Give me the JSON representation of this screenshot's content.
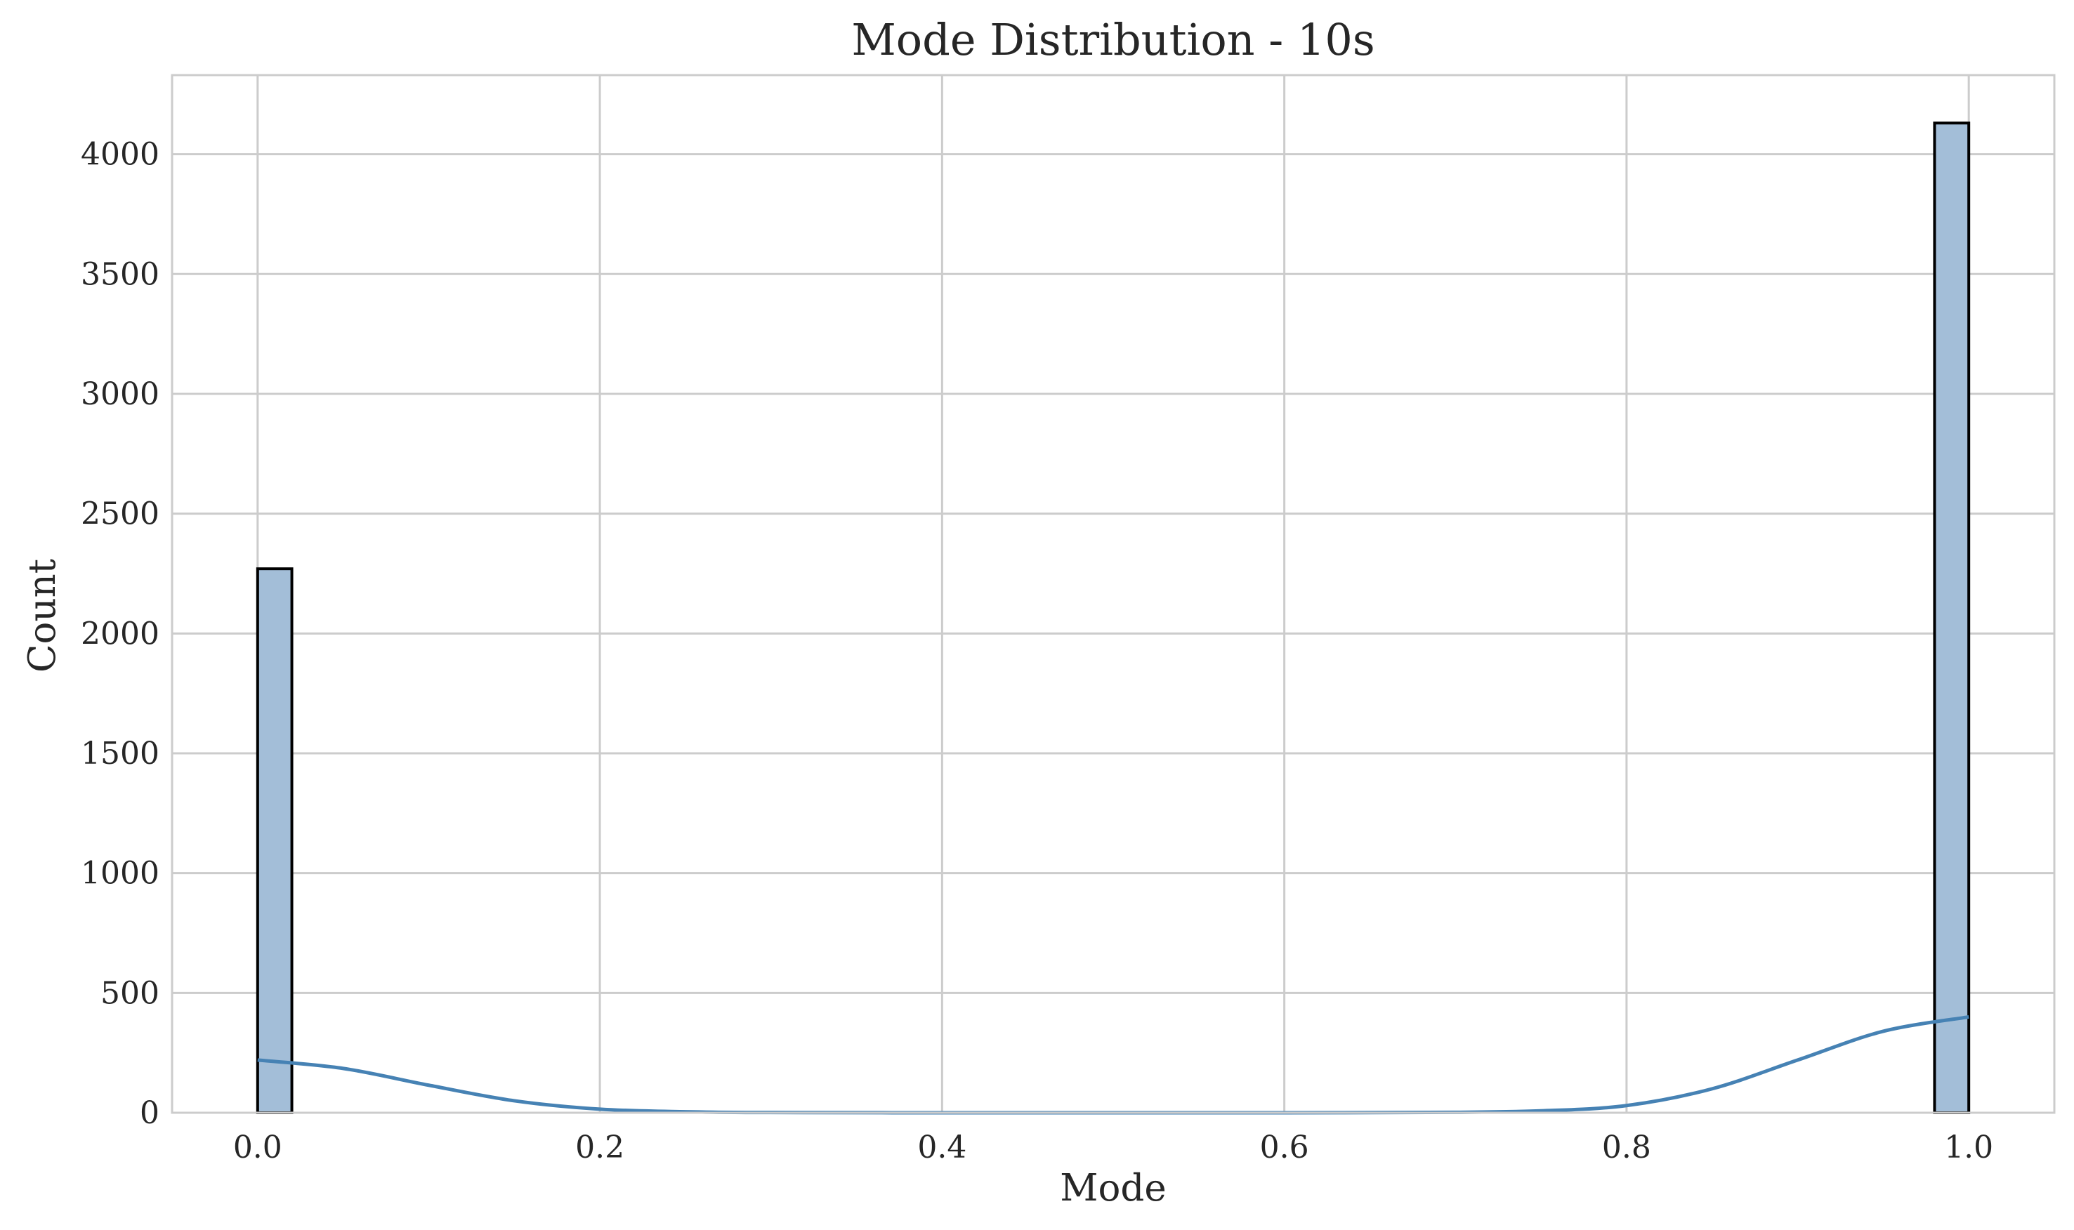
{
  "chart_data": {
    "type": "bar",
    "title": "Mode Distribution - 10s",
    "xlabel": "Mode",
    "ylabel": "Count",
    "xlim": [
      -0.05,
      1.05
    ],
    "ylim": [
      0,
      4330
    ],
    "xticks": [
      0.0,
      0.2,
      0.4,
      0.6,
      0.8,
      1.0
    ],
    "xtick_labels": [
      "0.0",
      "0.2",
      "0.4",
      "0.6",
      "0.8",
      "1.0"
    ],
    "yticks": [
      0,
      500,
      1000,
      1500,
      2000,
      2500,
      3000,
      3500,
      4000
    ],
    "ytick_labels": [
      "0",
      "500",
      "1000",
      "1500",
      "2000",
      "2500",
      "3000",
      "3500",
      "4000"
    ],
    "grid": true,
    "bars": [
      {
        "x0": 0.0,
        "x1": 0.02,
        "count": 2270
      },
      {
        "x0": 0.98,
        "x1": 1.0,
        "count": 4130
      }
    ],
    "kde_curve": {
      "x": [
        0.0,
        0.05,
        0.1,
        0.15,
        0.2,
        0.25,
        0.3,
        0.4,
        0.5,
        0.6,
        0.7,
        0.75,
        0.8,
        0.85,
        0.9,
        0.95,
        1.0
      ],
      "y": [
        220,
        185,
        115,
        50,
        15,
        4,
        1,
        0,
        0,
        0,
        2,
        8,
        30,
        100,
        220,
        340,
        400
      ]
    },
    "colors": {
      "bar_fill": "#a3bed8",
      "bar_edge": "#000000",
      "kde_line": "#4682b4",
      "grid": "#cccccc",
      "frame": "#cccccc"
    }
  }
}
